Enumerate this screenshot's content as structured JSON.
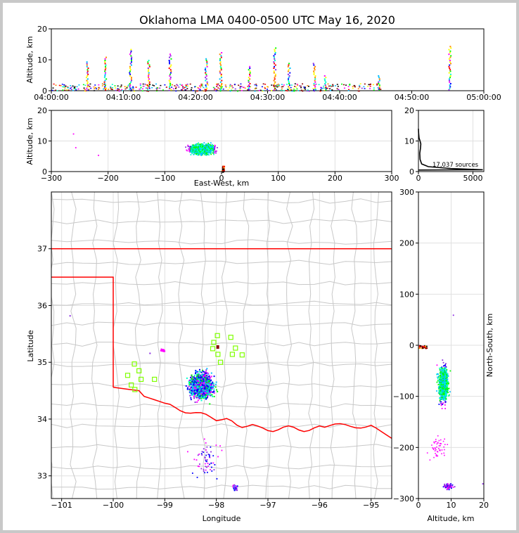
{
  "chart_data": [
    {
      "type": "scatter",
      "panel": "time-altitude",
      "title": "Oklahoma LMA 0400-0500 UTC May 16, 2020",
      "xlabel": "",
      "ylabel": "Altitude, km",
      "ylim": [
        0,
        20
      ],
      "yticks": [
        "0",
        "10",
        "20"
      ],
      "xticks": [
        "04:00:00",
        "04:10:00",
        "04:20:00",
        "04:30:00",
        "04:40:00",
        "04:50:00",
        "05:00:00"
      ],
      "xlim_minutes": [
        0,
        60
      ],
      "columns": [
        {
          "t": 5.0,
          "ymax": 9.5
        },
        {
          "t": 7.5,
          "ymax": 11
        },
        {
          "t": 11.0,
          "ymax": 13.5
        },
        {
          "t": 13.5,
          "ymax": 10
        },
        {
          "t": 16.5,
          "ymax": 12
        },
        {
          "t": 21.5,
          "ymax": 10.5
        },
        {
          "t": 23.5,
          "ymax": 12.5
        },
        {
          "t": 27.5,
          "ymax": 8
        },
        {
          "t": 31.0,
          "ymax": 14
        },
        {
          "t": 33.0,
          "ymax": 9
        },
        {
          "t": 36.5,
          "ymax": 9
        },
        {
          "t": 38.0,
          "ymax": 5
        },
        {
          "t": 45.5,
          "ymax": 5
        },
        {
          "t": 55.3,
          "ymax": 14.5
        }
      ]
    },
    {
      "type": "scatter",
      "panel": "east-west-altitude",
      "xlabel": "East-West, km",
      "ylabel": "Altitude, km",
      "xlim": [
        -300,
        300
      ],
      "ylim": [
        0,
        20
      ],
      "xticks": [
        "−300",
        "−200",
        "−100",
        "0",
        "100",
        "200",
        "300"
      ],
      "yticks": [
        "0",
        "10",
        "20"
      ]
    },
    {
      "type": "line",
      "panel": "altitude-histogram",
      "xlim": [
        0,
        6000
      ],
      "ylim": [
        0,
        20
      ],
      "xticks": [
        "0",
        "5000"
      ],
      "yticks": [
        "0",
        "10",
        "20"
      ],
      "annotation": "17,037 sources"
    },
    {
      "type": "scatter",
      "panel": "plan-view",
      "xlabel": "Longitude",
      "ylabel": "Latitude",
      "xlim": [
        -101.2,
        -94.6
      ],
      "ylim": [
        32.6,
        38.0
      ],
      "xticks": [
        "−101",
        "−100",
        "−99",
        "−98",
        "−97",
        "−96",
        "−95"
      ],
      "yticks": [
        "33",
        "34",
        "35",
        "36",
        "37"
      ],
      "stations": [
        {
          "lon": -97.98,
          "lat": 35.47
        },
        {
          "lon": -98.05,
          "lat": 35.35
        },
        {
          "lon": -98.07,
          "lat": 35.24
        },
        {
          "lon": -97.72,
          "lat": 35.44
        },
        {
          "lon": -97.63,
          "lat": 35.25
        },
        {
          "lon": -97.5,
          "lat": 35.13
        },
        {
          "lon": -97.69,
          "lat": 35.14
        },
        {
          "lon": -97.97,
          "lat": 35.14
        },
        {
          "lon": -97.92,
          "lat": 35.0
        },
        {
          "lon": -99.59,
          "lat": 34.97
        },
        {
          "lon": -99.5,
          "lat": 34.85
        },
        {
          "lon": -99.72,
          "lat": 34.77
        },
        {
          "lon": -99.46,
          "lat": 34.7
        },
        {
          "lon": -99.2,
          "lat": 34.7
        },
        {
          "lon": -99.65,
          "lat": 34.6
        },
        {
          "lon": -99.58,
          "lat": 34.52
        }
      ]
    },
    {
      "type": "scatter",
      "panel": "altitude-north-south",
      "xlabel": "Altitude, km",
      "ylabel": "North-South, km",
      "xlim": [
        0,
        20
      ],
      "ylim": [
        -300,
        300
      ],
      "xticks": [
        "0",
        "10",
        "20"
      ],
      "yticks": [
        "−300",
        "−200",
        "−100",
        "0",
        "100",
        "200",
        "300"
      ]
    }
  ],
  "colors": {
    "border": "#ff0000",
    "county": "#c8c8c8",
    "station": "#7fff00",
    "palette": [
      "#0000ff",
      "#8a2be2",
      "#ff00ff",
      "#00bfff",
      "#00ffcc",
      "#00ff00",
      "#ffff00",
      "#ff8800",
      "#ff0000",
      "#8b0000",
      "#000000"
    ]
  }
}
